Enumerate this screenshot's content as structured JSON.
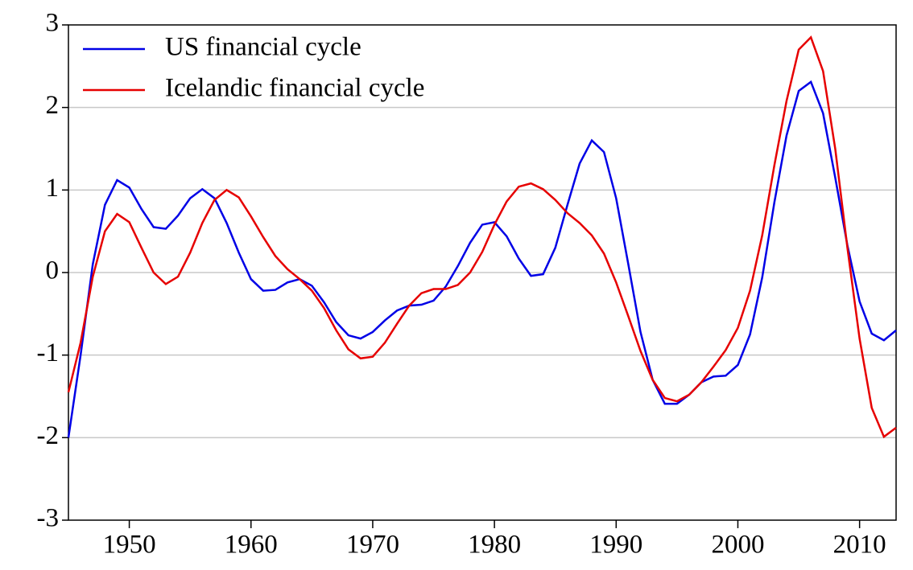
{
  "chart_data": {
    "type": "line",
    "x": [
      1945,
      1946,
      1947,
      1948,
      1949,
      1950,
      1951,
      1952,
      1953,
      1954,
      1955,
      1956,
      1957,
      1958,
      1959,
      1960,
      1961,
      1962,
      1963,
      1964,
      1965,
      1966,
      1967,
      1968,
      1969,
      1970,
      1971,
      1972,
      1973,
      1974,
      1975,
      1976,
      1977,
      1978,
      1979,
      1980,
      1981,
      1982,
      1983,
      1984,
      1985,
      1986,
      1987,
      1988,
      1989,
      1990,
      1991,
      1992,
      1993,
      1994,
      1995,
      1996,
      1997,
      1998,
      1999,
      2000,
      2001,
      2002,
      2003,
      2004,
      2005,
      2006,
      2007,
      2008,
      2009,
      2010,
      2011,
      2012,
      2013
    ],
    "series": [
      {
        "name": "US financial cycle",
        "color": "#0000e6",
        "values": [
          -2.0,
          -1.0,
          0.1,
          0.82,
          1.12,
          1.03,
          0.77,
          0.55,
          0.53,
          0.69,
          0.9,
          1.01,
          0.9,
          0.6,
          0.24,
          -0.08,
          -0.22,
          -0.21,
          -0.12,
          -0.08,
          -0.16,
          -0.36,
          -0.6,
          -0.76,
          -0.8,
          -0.72,
          -0.58,
          -0.46,
          -0.4,
          -0.39,
          -0.34,
          -0.17,
          0.08,
          0.36,
          0.58,
          0.61,
          0.44,
          0.17,
          -0.04,
          -0.02,
          0.3,
          0.82,
          1.32,
          1.6,
          1.46,
          0.9,
          0.1,
          -0.72,
          -1.3,
          -1.59,
          -1.59,
          -1.48,
          -1.33,
          -1.26,
          -1.25,
          -1.12,
          -0.75,
          -0.06,
          0.85,
          1.66,
          2.2,
          2.31,
          1.93,
          1.15,
          0.33,
          -0.35,
          -0.74,
          -0.82,
          -0.7
        ]
      },
      {
        "name": "Icelandic financial cycle",
        "color": "#e60000",
        "values": [
          -1.45,
          -0.85,
          -0.05,
          0.5,
          0.71,
          0.61,
          0.3,
          0.0,
          -0.14,
          -0.05,
          0.24,
          0.6,
          0.88,
          1.0,
          0.91,
          0.68,
          0.43,
          0.2,
          0.04,
          -0.08,
          -0.22,
          -0.43,
          -0.7,
          -0.93,
          -1.04,
          -1.02,
          -0.85,
          -0.62,
          -0.4,
          -0.25,
          -0.2,
          -0.2,
          -0.15,
          0.0,
          0.25,
          0.58,
          0.86,
          1.04,
          1.08,
          1.01,
          0.88,
          0.72,
          0.6,
          0.45,
          0.23,
          -0.12,
          -0.53,
          -0.95,
          -1.3,
          -1.52,
          -1.56,
          -1.48,
          -1.33,
          -1.14,
          -0.94,
          -0.67,
          -0.22,
          0.45,
          1.3,
          2.08,
          2.7,
          2.85,
          2.44,
          1.5,
          0.3,
          -0.8,
          -1.64,
          -1.99,
          -1.88
        ]
      }
    ],
    "xlim": [
      1945,
      2013
    ],
    "xticks": [
      1950,
      1960,
      1970,
      1980,
      1990,
      2000,
      2010
    ],
    "ylim": [
      -3,
      3
    ],
    "yticks": [
      -3,
      -2,
      -1,
      0,
      1,
      2,
      3
    ],
    "grid": true,
    "legend": "top-left"
  }
}
